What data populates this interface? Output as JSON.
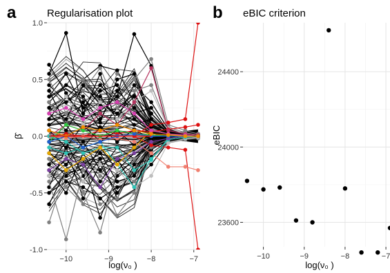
{
  "chart_data": [
    {
      "panel": "a",
      "type": "line",
      "title": "Regularisation plot",
      "xlabel": "log(ν₀ )",
      "ylabel": "β̂",
      "xlim": [
        -10.45,
        -6.85
      ],
      "ylim": [
        -1.0,
        1.0
      ],
      "x_ticks": [
        -10,
        -9,
        -8,
        -7
      ],
      "y_ticks": [
        -1.0,
        -0.5,
        0.0,
        0.5,
        1.0
      ],
      "y_tick_labels": [
        "-1.0",
        "-0.5",
        "0.0",
        "0.5",
        "1.0"
      ],
      "grid": true,
      "x": [
        -10.4,
        -10.0,
        -9.6,
        -9.2,
        -8.8,
        -8.4,
        -8.0,
        -7.6,
        -7.2,
        -6.9
      ],
      "series": [
        {
          "color": "#000000",
          "values": [
            0.63,
            0.38,
            0.15,
            0.22,
            0.35,
            0.9,
            0.62,
            0.05,
            0.02,
            0.01
          ]
        },
        {
          "color": "#000000",
          "values": [
            0.55,
            0.91,
            0.2,
            0.55,
            0.1,
            0.05,
            0.03,
            0.02,
            0.01,
            0.0
          ]
        },
        {
          "color": "#000000",
          "values": [
            0.4,
            0.1,
            0.5,
            0.62,
            0.58,
            0.3,
            0.1,
            0.05,
            0.03,
            0.02
          ]
        },
        {
          "color": "#000000",
          "values": [
            0.3,
            0.45,
            0.35,
            0.12,
            0.5,
            0.55,
            0.2,
            0.04,
            0.02,
            0.01
          ]
        },
        {
          "color": "#000000",
          "values": [
            -0.6,
            -0.3,
            -0.2,
            -0.72,
            -0.35,
            -0.2,
            -0.08,
            -0.04,
            -0.02,
            -0.01
          ]
        },
        {
          "color": "#000000",
          "values": [
            -0.45,
            -0.1,
            -0.55,
            -0.25,
            -0.5,
            -0.3,
            -0.1,
            -0.05,
            -0.03,
            -0.02
          ]
        },
        {
          "color": "#000000",
          "values": [
            -0.3,
            -0.5,
            -0.15,
            -0.4,
            -0.2,
            -0.45,
            -0.15,
            -0.04,
            -0.02,
            -0.01
          ]
        },
        {
          "color": "#000000",
          "values": [
            0.2,
            0.05,
            0.3,
            0.05,
            0.25,
            0.1,
            0.15,
            0.03,
            0.01,
            0.0
          ]
        },
        {
          "color": "#000000",
          "values": [
            -0.15,
            -0.25,
            -0.05,
            -0.3,
            -0.1,
            -0.2,
            -0.05,
            -0.02,
            -0.01,
            0.0
          ]
        },
        {
          "color": "#000000",
          "values": [
            0.1,
            0.2,
            0.05,
            0.15,
            0.4,
            0.25,
            0.05,
            0.02,
            0.01,
            0.0
          ]
        },
        {
          "color": "#000000",
          "values": [
            -0.25,
            -0.05,
            -0.35,
            -0.1,
            -0.3,
            -0.15,
            -0.12,
            -0.03,
            -0.01,
            0.0
          ]
        },
        {
          "color": "#000000",
          "values": [
            0.45,
            0.3,
            0.4,
            0.35,
            0.15,
            0.45,
            0.3,
            0.06,
            0.02,
            0.01
          ]
        },
        {
          "color": "#000000",
          "values": [
            -0.5,
            -0.4,
            -0.45,
            -0.55,
            -0.45,
            -0.4,
            -0.25,
            -0.05,
            -0.02,
            -0.01
          ]
        },
        {
          "color": "#000000",
          "values": [
            0.35,
            0.55,
            0.25,
            0.45,
            0.3,
            0.2,
            0.25,
            0.04,
            0.01,
            0.0
          ]
        },
        {
          "color": "#000000",
          "values": [
            -0.35,
            -0.2,
            -0.4,
            -0.2,
            -0.55,
            -0.25,
            -0.2,
            -0.04,
            -0.02,
            0.0
          ]
        },
        {
          "color": "#000000",
          "values": [
            0.05,
            -0.1,
            0.1,
            -0.05,
            0.05,
            -0.08,
            0.03,
            0.01,
            0.0,
            0.0
          ]
        },
        {
          "color": "#000000",
          "values": [
            -0.05,
            0.1,
            -0.1,
            0.08,
            -0.05,
            0.06,
            -0.03,
            -0.01,
            0.0,
            0.0
          ]
        },
        {
          "color": "#000000",
          "values": [
            0.25,
            0.15,
            0.45,
            0.28,
            0.2,
            0.35,
            0.2,
            0.05,
            0.02,
            0.01
          ]
        },
        {
          "color": "#000000",
          "values": [
            -0.2,
            -0.35,
            -0.25,
            -0.15,
            -0.4,
            -0.35,
            -0.18,
            -0.05,
            -0.02,
            -0.01
          ]
        },
        {
          "color": "#000000",
          "values": [
            0.15,
            0.35,
            0.2,
            0.4,
            0.45,
            0.15,
            0.08,
            0.03,
            0.01,
            0.0
          ]
        },
        {
          "color": "#808080",
          "values": [
            -0.76,
            -0.3,
            -0.5,
            -0.85,
            -0.3,
            -0.4,
            -0.15,
            -0.05,
            -0.03,
            -0.02
          ]
        },
        {
          "color": "#808080",
          "values": [
            -0.4,
            -0.91,
            -0.3,
            -0.6,
            -0.55,
            -0.2,
            -0.1,
            -0.03,
            -0.01,
            0.0
          ]
        },
        {
          "color": "#808080",
          "values": [
            0.5,
            0.2,
            0.4,
            0.6,
            0.25,
            0.5,
            0.68,
            0.1,
            0.05,
            0.02
          ]
        },
        {
          "color": "#808080",
          "values": [
            -0.2,
            -0.45,
            -0.6,
            -0.35,
            -0.7,
            -0.5,
            -0.2,
            -0.06,
            -0.03,
            -0.01
          ]
        },
        {
          "color": "#808080",
          "values": [
            0.3,
            0.1,
            0.5,
            0.2,
            0.55,
            0.4,
            0.45,
            0.08,
            0.03,
            0.01
          ]
        },
        {
          "color": "#bdbdbd",
          "values": [
            0.2,
            0.35,
            0.1,
            0.3,
            0.15,
            0.3,
            0.4,
            0.07,
            0.02,
            0.01
          ]
        },
        {
          "color": "#bdbdbd",
          "values": [
            -0.35,
            -0.15,
            -0.4,
            -0.25,
            -0.3,
            -0.45,
            -0.35,
            -0.06,
            -0.02,
            -0.01
          ]
        },
        {
          "color": "#dd1111",
          "values": [
            0.0,
            0.0,
            0.0,
            0.0,
            0.0,
            0.0,
            0.1,
            0.12,
            0.15,
            1.0
          ]
        },
        {
          "color": "#dd1111",
          "values": [
            0.0,
            0.0,
            0.0,
            0.0,
            0.0,
            0.0,
            -0.08,
            -0.1,
            -0.12,
            -1.0
          ]
        },
        {
          "color": "#dd1111",
          "values": [
            0.0,
            0.02,
            0.0,
            0.05,
            0.02,
            0.05,
            0.04,
            0.06,
            0.08,
            0.1
          ]
        },
        {
          "color": "#f08070",
          "values": [
            0.0,
            -0.02,
            0.0,
            -0.03,
            -0.02,
            -0.05,
            -0.15,
            -0.27,
            -0.27,
            -0.3
          ]
        },
        {
          "color": "#b5325e",
          "values": [
            0.0,
            0.1,
            0.05,
            0.2,
            0.1,
            0.3,
            0.6,
            0.05,
            0.02,
            0.01
          ]
        },
        {
          "color": "#2ec4b6",
          "values": [
            -0.1,
            -0.15,
            -0.1,
            -0.05,
            -0.25,
            -0.45,
            -0.2,
            -0.03,
            -0.01,
            0.0
          ]
        },
        {
          "color": "#2ec4b6",
          "values": [
            0.0,
            -0.05,
            -0.15,
            -0.1,
            -0.1,
            -0.3,
            -0.21,
            -0.02,
            0.0,
            0.0
          ]
        },
        {
          "color": "#7b3fa0",
          "values": [
            -0.3,
            -0.2,
            -0.25,
            -0.45,
            -0.2,
            -0.15,
            -0.05,
            -0.02,
            0.0,
            0.0
          ]
        },
        {
          "color": "#e6a800",
          "values": [
            -0.15,
            -0.3,
            -0.2,
            -0.1,
            -0.25,
            -0.1,
            0.05,
            0.02,
            0.0,
            0.0
          ]
        },
        {
          "color": "#d63fb0",
          "values": [
            0.2,
            0.25,
            0.15,
            0.25,
            0.3,
            0.2,
            0.05,
            0.02,
            0.01,
            0.0
          ]
        },
        {
          "color": "#2ecc40",
          "values": [
            -0.05,
            0.1,
            0.05,
            0.0,
            0.05,
            0.02,
            0.01,
            0.0,
            0.0,
            0.0
          ]
        },
        {
          "color": "#1f5fd0",
          "values": [
            -0.05,
            0.0,
            -0.1,
            -0.05,
            0.0,
            0.02,
            0.0,
            0.0,
            0.0,
            0.0
          ]
        },
        {
          "color": "#f08c00",
          "values": [
            0.05,
            0.0,
            0.08,
            0.05,
            0.1,
            0.05,
            0.02,
            0.01,
            0.0,
            0.0
          ]
        }
      ]
    },
    {
      "panel": "b",
      "type": "scatter",
      "title": "eBIC criterion",
      "xlabel": "log(ν₀ )",
      "ylabel": "eBIC",
      "xlim": [
        -10.5,
        -6.9
      ],
      "ylim": [
        23470,
        24660
      ],
      "x_ticks": [
        -10,
        -9,
        -8,
        -7
      ],
      "y_ticks": [
        23600,
        24000,
        24400
      ],
      "grid": true,
      "x": [
        -10.4,
        -10.0,
        -9.6,
        -9.2,
        -8.8,
        -8.4,
        -8.0,
        -7.6,
        -7.2,
        -6.9
      ],
      "y": [
        23820,
        23775,
        23785,
        23610,
        23600,
        24620,
        23780,
        23440,
        23440,
        23570
      ]
    }
  ]
}
